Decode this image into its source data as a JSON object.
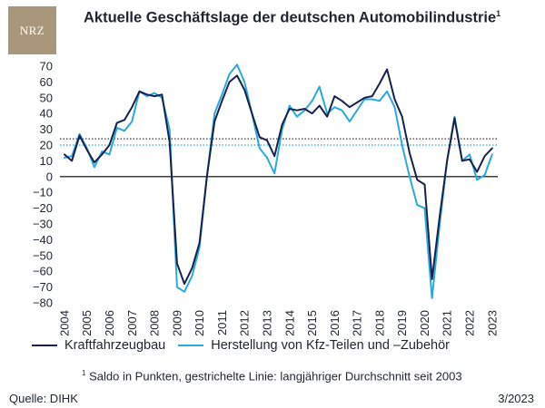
{
  "header": {
    "logo_text": "NRZ",
    "title": "Aktuelle Geschäftslage der deutschen Automobilindustrie",
    "title_mark": "1"
  },
  "legend": {
    "items": [
      "Kraftfahrzeugbau",
      "Herstellung von Kfz-Teilen und –Zubehör"
    ]
  },
  "footer": {
    "footnote_mark": "1",
    "footnote": "Saldo in Punkten, gestrichelte Linie: langjähriger Durchschnitt seit 2003",
    "source": "Quelle: DIHK",
    "date": "3/2023"
  },
  "colors": {
    "kraftfahrzeugbau": "#17214f",
    "zulieferer": "#2aa8df",
    "text": "#1f2530",
    "logo": "#a9977c"
  },
  "chart_data": {
    "type": "line",
    "title": "Aktuelle Geschäftslage der deutschen Automobilindustrie",
    "ylim": [
      -80,
      70
    ],
    "yticks": [
      70,
      60,
      50,
      40,
      30,
      20,
      10,
      0,
      -10,
      -20,
      -30,
      -40,
      -50,
      -60,
      -70,
      -80
    ],
    "ytick_labels": [
      "70",
      "60",
      "50",
      "40",
      "30",
      "20",
      "10",
      "0",
      "−10",
      "−20",
      "−30",
      "−40",
      "−50",
      "−60",
      "−70",
      "−80"
    ],
    "xlim": [
      2003.8,
      2023.25
    ],
    "xticks": [
      2004,
      2005,
      2006,
      2007,
      2008,
      2009,
      2010,
      2011,
      2012,
      2013,
      2014,
      2015,
      2016,
      2017,
      2018,
      2019,
      2020,
      2021,
      2022,
      2023
    ],
    "grid": false,
    "legend_position": "bottom",
    "reference_lines": [
      {
        "series": "Kraftfahrzeugbau",
        "value": 24,
        "style": "dotted"
      },
      {
        "series": "Herstellung von Kfz-Teilen und –Zubehör",
        "value": 20,
        "style": "dotted"
      }
    ],
    "series": [
      {
        "name": "Kraftfahrzeugbau",
        "x": [
          2004,
          2004.33,
          2004.67,
          2005,
          2005.33,
          2005.67,
          2006,
          2006.33,
          2006.67,
          2007,
          2007.33,
          2007.67,
          2008,
          2008.33,
          2008.67,
          2009,
          2009.33,
          2009.67,
          2010,
          2010.33,
          2010.67,
          2011,
          2011.33,
          2011.67,
          2012,
          2012.33,
          2012.67,
          2013,
          2013.33,
          2013.67,
          2014,
          2014.33,
          2014.67,
          2015,
          2015.33,
          2015.67,
          2016,
          2016.33,
          2016.67,
          2017,
          2017.33,
          2017.67,
          2018,
          2018.33,
          2018.67,
          2019,
          2019.33,
          2019.67,
          2020,
          2020.33,
          2020.67,
          2021,
          2021.33,
          2021.67,
          2022,
          2022.33,
          2022.67,
          2023
        ],
        "y": [
          14,
          10,
          26,
          17,
          9,
          14,
          20,
          34,
          36,
          44,
          54,
          52,
          51,
          52,
          22,
          -55,
          -68,
          -58,
          -42,
          0,
          35,
          48,
          60,
          64,
          55,
          40,
          25,
          23,
          13,
          33,
          43,
          42,
          43,
          40,
          45,
          38,
          51,
          48,
          44,
          47,
          50,
          51,
          59,
          68,
          49,
          38,
          15,
          -2,
          -5,
          -65,
          -25,
          10,
          37,
          10,
          11,
          3,
          13,
          18
        ]
      },
      {
        "name": "Herstellung von Kfz-Teilen und –Zubehör",
        "x": [
          2004,
          2004.33,
          2004.67,
          2005,
          2005.33,
          2005.67,
          2006,
          2006.33,
          2006.67,
          2007,
          2007.33,
          2007.67,
          2008,
          2008.33,
          2008.67,
          2009,
          2009.33,
          2009.67,
          2010,
          2010.33,
          2010.67,
          2011,
          2011.33,
          2011.67,
          2012,
          2012.33,
          2012.67,
          2013,
          2013.33,
          2013.67,
          2014,
          2014.33,
          2014.67,
          2015,
          2015.33,
          2015.67,
          2016,
          2016.33,
          2016.67,
          2017,
          2017.33,
          2017.67,
          2018,
          2018.33,
          2018.67,
          2019,
          2019.33,
          2019.67,
          2020,
          2020.33,
          2020.67,
          2021,
          2021.33,
          2021.67,
          2022,
          2022.33,
          2022.67,
          2023
        ],
        "y": [
          12,
          13,
          27,
          18,
          6,
          16,
          14,
          31,
          29,
          35,
          54,
          51,
          53,
          50,
          30,
          -70,
          -73,
          -63,
          -45,
          0,
          40,
          52,
          65,
          71,
          60,
          40,
          18,
          12,
          2,
          30,
          45,
          38,
          42,
          48,
          57,
          40,
          44,
          42,
          35,
          42,
          49,
          49,
          48,
          54,
          44,
          20,
          0,
          -18,
          -20,
          -77,
          -30,
          10,
          38,
          10,
          14,
          -2,
          1,
          14
        ]
      }
    ]
  }
}
